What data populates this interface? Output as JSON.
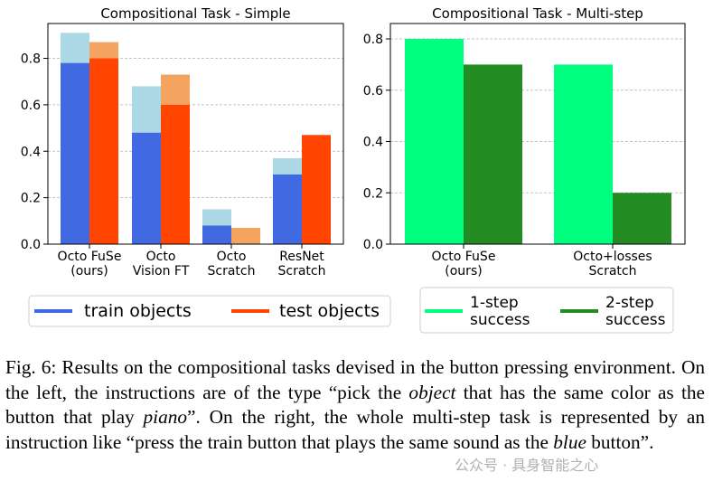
{
  "figure": {
    "caption": {
      "label": "Fig. 6:",
      "parts": [
        "Results on the compositional tasks devised in the button pressing environment. On the left, the instructions are of the type “pick the ",
        "object",
        " that has the same color as the button that play ",
        "piano",
        "”. On the right, the whole multi-step task is represented by an instruction like “press the train button that plays the same sound as the ",
        "blue",
        " button”."
      ]
    },
    "watermark": "公众号 · 具身智能之心"
  },
  "colors": {
    "train_objects": "#4169e1",
    "train_objects_light": "#add8e6",
    "test_objects": "#ff4500",
    "test_objects_light": "#f4a460",
    "one_step": "#00ff7f",
    "two_step": "#228b22"
  },
  "chart_data": [
    {
      "type": "bar",
      "title": "Compositional Task - Simple",
      "categories": [
        [
          "Octo FuSe",
          "(ours)"
        ],
        [
          "Octo",
          "Vision FT"
        ],
        [
          "Octo",
          "Scratch"
        ],
        [
          "ResNet",
          "Scratch"
        ]
      ],
      "series": [
        {
          "name": "train objects",
          "values": [
            0.78,
            0.48,
            0.08,
            0.3
          ],
          "stacked_total": [
            0.91,
            0.68,
            0.15,
            0.37
          ]
        },
        {
          "name": "test objects",
          "values": [
            0.8,
            0.6,
            0.0,
            0.47
          ],
          "stacked_total": [
            0.87,
            0.73,
            0.07,
            0.47
          ]
        }
      ],
      "ylim": [
        0,
        0.95
      ],
      "yticks": [
        "0.0",
        "0.2",
        "0.4",
        "0.6",
        "0.8"
      ],
      "ytick_values": [
        0,
        0.2,
        0.4,
        0.6,
        0.8
      ],
      "grid": true,
      "legend": "bottom"
    },
    {
      "type": "bar",
      "title": "Compositional Task - Multi-step",
      "categories": [
        [
          "Octo FuSe",
          "(ours)"
        ],
        [
          "Octo+losses",
          "Scratch"
        ]
      ],
      "series": [
        {
          "name": [
            "1-step",
            "success"
          ],
          "values": [
            0.8,
            0.7
          ]
        },
        {
          "name": [
            "2-step",
            "success"
          ],
          "values": [
            0.7,
            0.2
          ]
        }
      ],
      "ylim": [
        0,
        0.86
      ],
      "yticks": [
        "0.0",
        "0.2",
        "0.4",
        "0.6",
        "0.8"
      ],
      "ytick_values": [
        0,
        0.2,
        0.4,
        0.6,
        0.8
      ],
      "grid": true,
      "legend": "bottom"
    }
  ]
}
